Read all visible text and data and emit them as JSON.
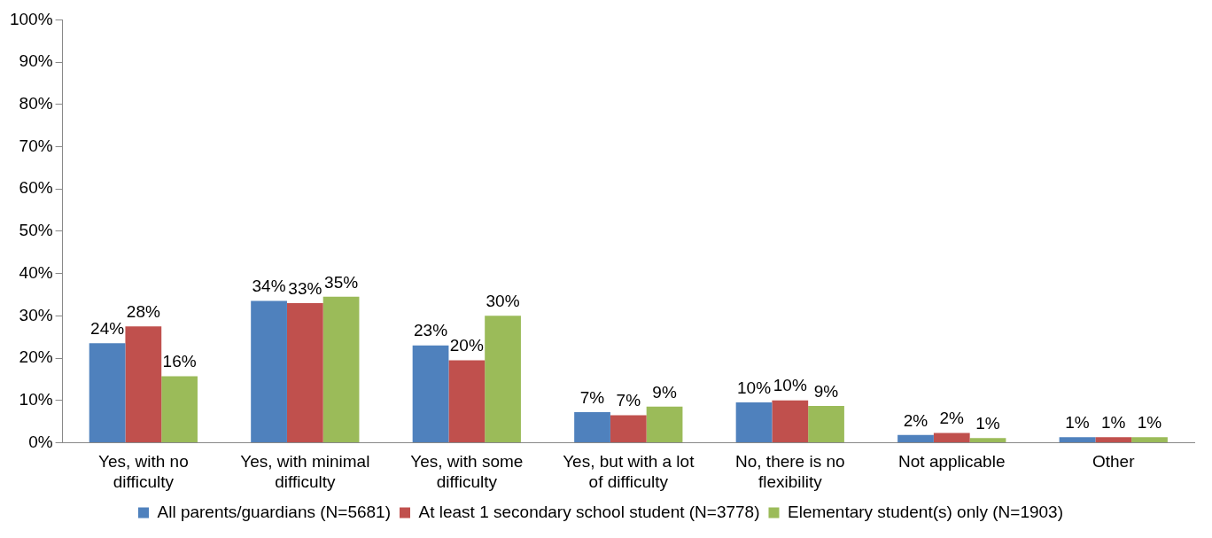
{
  "chart_data": {
    "type": "bar",
    "categories": [
      "Yes, with no difficulty",
      "Yes, with minimal difficulty",
      "Yes, with some difficulty",
      "Yes, but with a lot of difficulty",
      "No, there is no flexibility",
      "Not applicable",
      "Other"
    ],
    "series": [
      {
        "name": "All parents/guardians (N=5681)",
        "color": "#4f81bd",
        "values": [
          23.5,
          33.5,
          23,
          7.2,
          9.5,
          1.8,
          1.3
        ],
        "value_labels": [
          "24%",
          "34%",
          "23%",
          "7%",
          "10%",
          "2%",
          "1%"
        ]
      },
      {
        "name": "At least 1 secondary school student (N=3778)",
        "color": "#c0504d",
        "values": [
          27.5,
          33,
          19.5,
          6.5,
          10,
          2.3,
          1.3
        ],
        "value_labels": [
          "28%",
          "33%",
          "20%",
          "7%",
          "10%",
          "2%",
          "1%"
        ]
      },
      {
        "name": "Elementary student(s) only (N=1903)",
        "color": "#9bbb59",
        "values": [
          15.7,
          34.5,
          30,
          8.5,
          8.7,
          1.1,
          1.3
        ],
        "value_labels": [
          "16%",
          "35%",
          "30%",
          "9%",
          "9%",
          "1%",
          "1%"
        ]
      }
    ],
    "ylim": [
      0,
      100
    ],
    "yticks": [
      {
        "value": 0,
        "label": "0%"
      },
      {
        "value": 10,
        "label": "10%"
      },
      {
        "value": 20,
        "label": "20%"
      },
      {
        "value": 30,
        "label": "30%"
      },
      {
        "value": 40,
        "label": "40%"
      },
      {
        "value": 50,
        "label": "50%"
      },
      {
        "value": 60,
        "label": "60%"
      },
      {
        "value": 70,
        "label": "70%"
      },
      {
        "value": 80,
        "label": "80%"
      },
      {
        "value": 90,
        "label": "90%"
      },
      {
        "value": 100,
        "label": "100%"
      }
    ],
    "grid": false,
    "legend": "bottom"
  }
}
